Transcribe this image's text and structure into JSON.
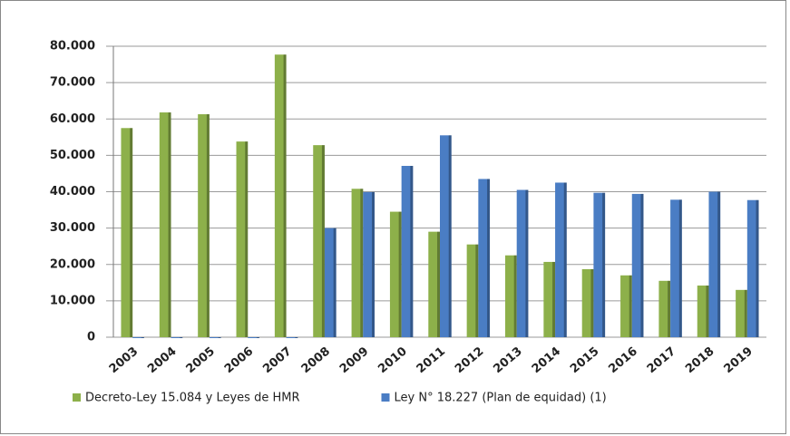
{
  "chart_data": {
    "type": "bar",
    "categories": [
      "2003",
      "2004",
      "2005",
      "2006",
      "2007",
      "2008",
      "2009",
      "2010",
      "2011",
      "2012",
      "2013",
      "2014",
      "2015",
      "2016",
      "2017",
      "2018",
      "2019"
    ],
    "series": [
      {
        "name": "Decreto-Ley 15.084 y Leyes de HMR",
        "color": "#8db04a",
        "values": [
          57500,
          61800,
          61300,
          53800,
          77700,
          52800,
          40800,
          34500,
          29000,
          25500,
          22500,
          20700,
          18700,
          17000,
          15500,
          14200,
          13000
        ]
      },
      {
        "name": "Ley N° 18.227 (Plan de equidad) (1)",
        "color": "#4a7dc4",
        "values": [
          0,
          0,
          0,
          0,
          0,
          30000,
          39900,
          47100,
          55500,
          43500,
          40500,
          42500,
          39700,
          39400,
          37800,
          40000,
          37700
        ]
      }
    ],
    "ylim": [
      0,
      80000
    ],
    "yticks": [
      0,
      {
        "value": 10000,
        "label": "10.000"
      },
      {
        "value": 20000,
        "label": "20.000"
      },
      {
        "value": 30000,
        "label": "30.000"
      },
      {
        "value": 40000,
        "label": "40.000"
      },
      {
        "value": 50000,
        "label": "50.000"
      },
      {
        "value": 60000,
        "label": "60.000"
      },
      {
        "value": 70000,
        "label": "70.000"
      },
      {
        "value": 80000,
        "label": "80.000"
      }
    ],
    "grid": true,
    "legend": "bottom"
  }
}
